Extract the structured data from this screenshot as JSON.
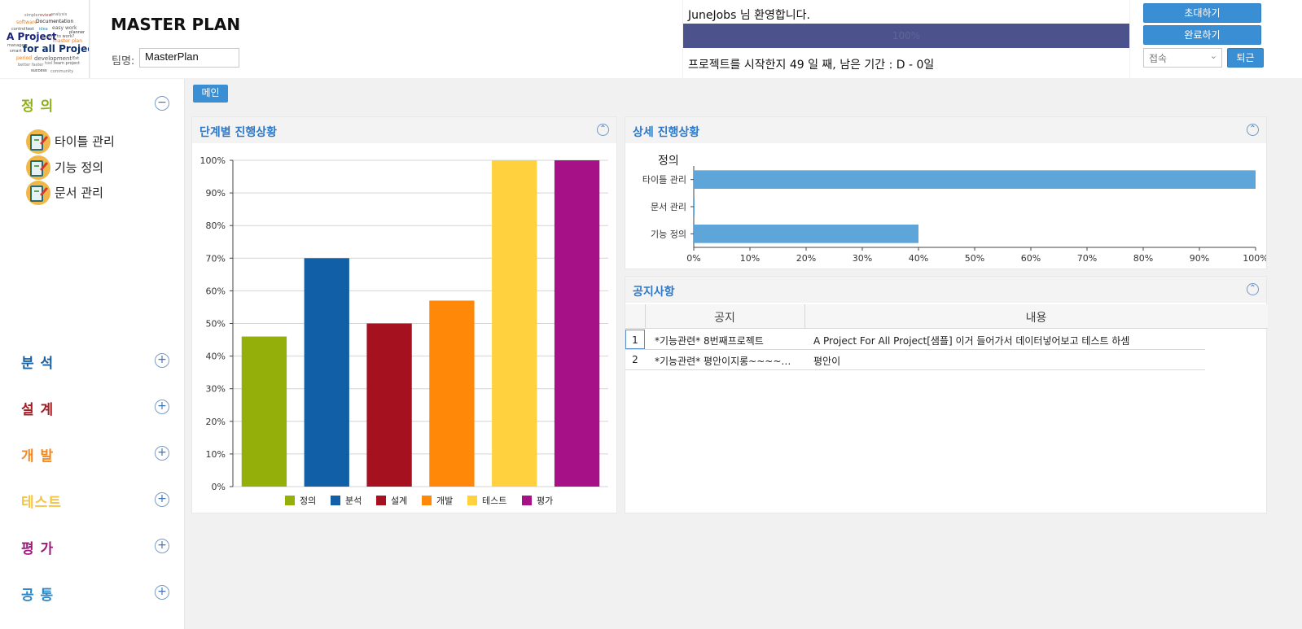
{
  "header": {
    "logo_words": [
      "simple",
      "review",
      "analysis",
      "software",
      "Documentation",
      "control",
      "test",
      "idea",
      "easy work",
      "planner",
      "A Project",
      "how to work?",
      "master plan",
      "manager",
      "for all Project",
      "smart",
      "period",
      "development",
      "Ext",
      "better faster",
      "tool",
      "team project",
      "success",
      "community"
    ],
    "app_title": "MASTER PLAN",
    "team_label": "팀명:",
    "team_value": "MasterPlan",
    "welcome": "JuneJobs 님 환영합니다.",
    "progress_percent": 100,
    "progress_label": "100%",
    "status_text": "프로젝트를 시작한지 49 일 째, 남은 기간 : D - 0일",
    "invite_label": "초대하기",
    "complete_label": "완료하기",
    "connection_value": "접속",
    "leave_label": "퇴근"
  },
  "sidebar": {
    "categories": [
      {
        "label": "정 의",
        "color": "#8fae1b",
        "expanded": true,
        "toggle": "−"
      },
      {
        "label": "분 석",
        "color": "#1a5f9e",
        "expanded": false,
        "toggle": "+"
      },
      {
        "label": "설 계",
        "color": "#a31c22",
        "expanded": false,
        "toggle": "+"
      },
      {
        "label": "개 발",
        "color": "#f5871f",
        "expanded": false,
        "toggle": "+"
      },
      {
        "label": "테스트",
        "color": "#f6c343",
        "expanded": false,
        "toggle": "+"
      },
      {
        "label": "평 가",
        "color": "#9c1b7e",
        "expanded": false,
        "toggle": "+"
      },
      {
        "label": "공 통",
        "color": "#2d87c8",
        "expanded": false,
        "toggle": "+"
      }
    ],
    "sub_items": [
      "타이틀 관리",
      "기능 정의",
      "문서 관리"
    ]
  },
  "main": {
    "tab_label": "메인"
  },
  "panels": {
    "stage_title": "단계별 진행상황",
    "detail_title": "상세 진행상황",
    "notice_title": "공지사항"
  },
  "chart_data": [
    {
      "type": "bar",
      "title": "단계별 진행상황",
      "categories": [
        "정의",
        "분석",
        "설계",
        "개발",
        "테스트",
        "평가"
      ],
      "values": [
        46,
        70,
        50,
        57,
        100,
        100
      ],
      "colors": [
        "#94ae0a",
        "#115fa6",
        "#a61120",
        "#ff8809",
        "#ffd13e",
        "#a61187"
      ],
      "ylim": [
        0,
        100
      ],
      "yticks": [
        "0%",
        "10%",
        "20%",
        "30%",
        "40%",
        "50%",
        "60%",
        "70%",
        "80%",
        "90%",
        "100%"
      ],
      "legend": "bottom",
      "grid": true
    },
    {
      "type": "bar",
      "orientation": "horizontal",
      "title": "상세 진행상황",
      "group_label": "정의",
      "categories": [
        "타이틀 관리",
        "문서 관리",
        "기능 정의"
      ],
      "values": [
        100,
        0,
        40
      ],
      "color": "#5ea5d9",
      "xlim": [
        0,
        100
      ],
      "xticks": [
        "0%",
        "10%",
        "20%",
        "30%",
        "40%",
        "50%",
        "60%",
        "70%",
        "80%",
        "90%",
        "100%"
      ]
    }
  ],
  "notice": {
    "columns": [
      "공지",
      "내용"
    ],
    "rows": [
      {
        "index": "1",
        "title": "*기능관련* 8번째프로젝트",
        "content": "A Project For All Project[샘플] 이거 들어가서 데이터넣어보고 테스트 하셈"
      },
      {
        "index": "2",
        "title": "*기능관련* 평안이지롱~~~~~~",
        "content": "평안이"
      }
    ]
  }
}
